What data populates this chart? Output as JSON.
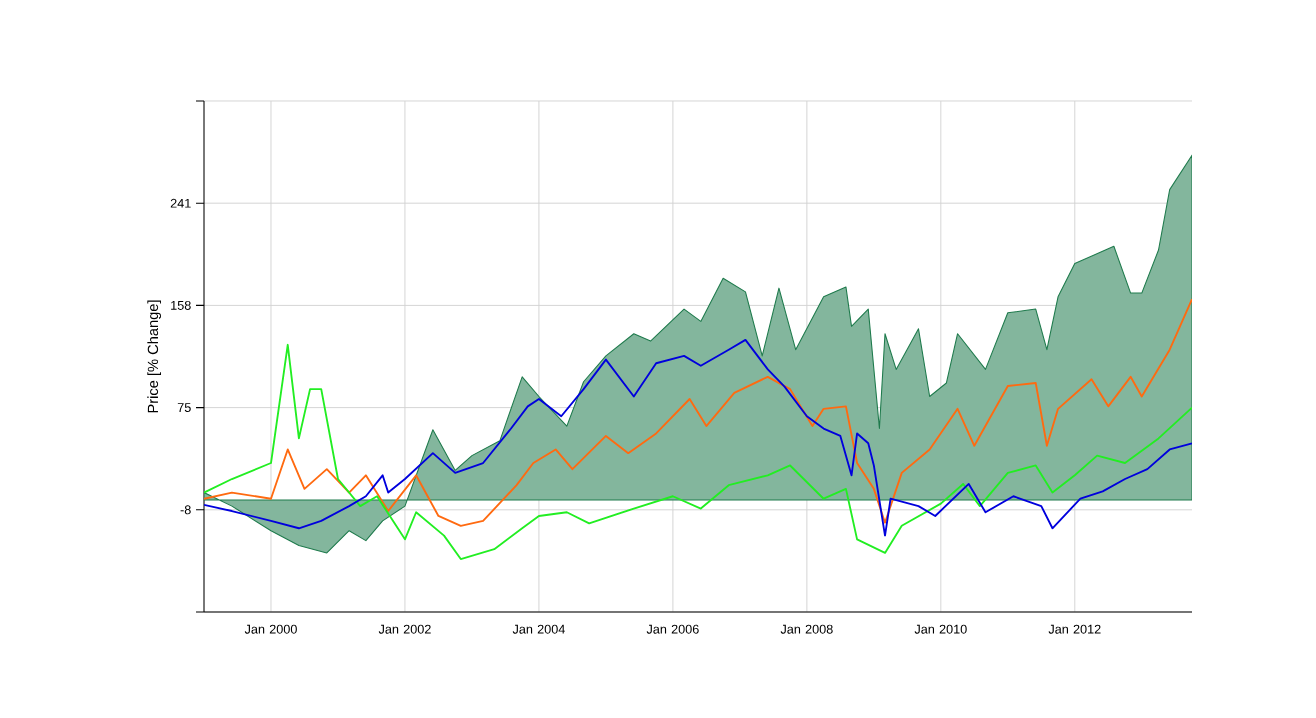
{
  "chart_data": {
    "type": "line",
    "ylabel": "Price [% Change]",
    "xlim": [
      "1999-01",
      "2013-10"
    ],
    "ylim": [
      -91,
      324
    ],
    "xticks": [
      {
        "value": "2000-01",
        "label": "Jan 2000"
      },
      {
        "value": "2002-01",
        "label": "Jan 2002"
      },
      {
        "value": "2004-01",
        "label": "Jan 2004"
      },
      {
        "value": "2006-01",
        "label": "Jan 2006"
      },
      {
        "value": "2008-01",
        "label": "Jan 2008"
      },
      {
        "value": "2010-01",
        "label": "Jan 2010"
      },
      {
        "value": "2012-01",
        "label": "Jan 2012"
      }
    ],
    "yticks": [
      {
        "value": -91,
        "label": null
      },
      -8,
      75,
      158,
      241,
      {
        "value": 324,
        "label": null
      }
    ],
    "grid": true,
    "series": [
      {
        "type": "area",
        "color": "#1e7a4c",
        "x": [
          "1999-01",
          "1999-06",
          "2000-01",
          "2000-06",
          "2000-11",
          "2001-03",
          "2001-06",
          "2001-09",
          "2002-01",
          "2002-06",
          "2002-10",
          "2003-01",
          "2003-06",
          "2003-10",
          "2004-01",
          "2004-06",
          "2004-09",
          "2005-01",
          "2005-06",
          "2005-09",
          "2006-03",
          "2006-06",
          "2006-10",
          "2007-02",
          "2007-05",
          "2007-08",
          "2007-11",
          "2008-04",
          "2008-08",
          "2008-09",
          "2008-12",
          "2009-02",
          "2009-03",
          "2009-05",
          "2009-09",
          "2009-11",
          "2010-02",
          "2010-04",
          "2010-09",
          "2011-01",
          "2011-06",
          "2011-08",
          "2011-10",
          "2012-01",
          "2012-08",
          "2012-11",
          "2013-01",
          "2013-04",
          "2013-06",
          "2013-10"
        ],
        "values": [
          6,
          -5,
          -25,
          -37,
          -43,
          -25,
          -33,
          -17,
          -5,
          57,
          24,
          36,
          48,
          100,
          84,
          60,
          96,
          117,
          135,
          129,
          155,
          145,
          180,
          169,
          117,
          172,
          122,
          165,
          173,
          141,
          155,
          58,
          135,
          106,
          139,
          84,
          95,
          135,
          106,
          152,
          155,
          122,
          165,
          192,
          206,
          168,
          168,
          203,
          252,
          280
        ]
      },
      {
        "color": "#ff6a10",
        "x": [
          "1999-01",
          "1999-06",
          "2000-01",
          "2000-04",
          "2000-07",
          "2000-11",
          "2001-03",
          "2001-06",
          "2001-10",
          "2002-03",
          "2002-07",
          "2002-11",
          "2003-03",
          "2003-09",
          "2003-12",
          "2004-04",
          "2004-07",
          "2005-01",
          "2005-05",
          "2005-10",
          "2006-04",
          "2006-07",
          "2006-12",
          "2007-06",
          "2007-10",
          "2008-02",
          "2008-04",
          "2008-08",
          "2008-10",
          "2009-01",
          "2009-03",
          "2009-06",
          "2009-11",
          "2010-04",
          "2010-07",
          "2011-01",
          "2011-06",
          "2011-08",
          "2011-10",
          "2012-04",
          "2012-07",
          "2012-11",
          "2013-01",
          "2013-06",
          "2013-10"
        ],
        "values": [
          1,
          6,
          1,
          41,
          9,
          25,
          6,
          20,
          -9,
          20,
          -13,
          -21,
          -17,
          12,
          30,
          41,
          25,
          52,
          38,
          54,
          82,
          60,
          87,
          100,
          90,
          60,
          74,
          76,
          30,
          9,
          -18.5,
          22,
          41,
          74,
          44,
          92.5,
          95,
          44,
          74,
          98,
          76,
          100,
          84,
          122,
          163
        ]
      },
      {
        "color": "#22ee22",
        "x": [
          "1999-01",
          "1999-06",
          "2000-01",
          "2000-04",
          "2000-06",
          "2000-08",
          "2000-10",
          "2001-01",
          "2001-05",
          "2001-08",
          "2002-01",
          "2002-03",
          "2002-08",
          "2002-11",
          "2003-05",
          "2003-10",
          "2004-01",
          "2004-06",
          "2004-10",
          "2005-06",
          "2006-01",
          "2006-06",
          "2006-11",
          "2007-06",
          "2007-10",
          "2008-04",
          "2008-08",
          "2008-10",
          "2009-03",
          "2009-06",
          "2010-01",
          "2010-05",
          "2010-08",
          "2011-01",
          "2011-06",
          "2011-09",
          "2012-01",
          "2012-05",
          "2012-10",
          "2013-04",
          "2013-10"
        ],
        "values": [
          6,
          17,
          30,
          126,
          50,
          90,
          90,
          17,
          -5,
          3,
          -32,
          -10,
          -29,
          -48,
          -40,
          -23,
          -13,
          -10,
          -19,
          -7,
          3,
          -7,
          12,
          20,
          28,
          1,
          9,
          -32,
          -43,
          -21,
          -3,
          13,
          -5,
          22,
          28,
          6,
          20,
          36,
          30,
          50,
          75
        ]
      },
      {
        "color": "#0000dd",
        "x": [
          "1999-01",
          "1999-06",
          "2000-01",
          "2000-06",
          "2000-10",
          "2001-03",
          "2001-06",
          "2001-09",
          "2001-10",
          "2002-01",
          "2002-06",
          "2002-10",
          "2003-03",
          "2003-08",
          "2003-11",
          "2004-01",
          "2004-05",
          "2004-09",
          "2005-01",
          "2005-06",
          "2005-10",
          "2006-03",
          "2006-06",
          "2006-11",
          "2007-02",
          "2007-06",
          "2007-09",
          "2008-01",
          "2008-04",
          "2008-07",
          "2008-09",
          "2008-10",
          "2008-12",
          "2009-01",
          "2009-03",
          "2009-04",
          "2009-09",
          "2009-12",
          "2010-06",
          "2010-09",
          "2011-02",
          "2011-07",
          "2011-09",
          "2012-02",
          "2012-06",
          "2012-10",
          "2013-02",
          "2013-06",
          "2013-10"
        ],
        "values": [
          -4,
          -9,
          -17,
          -23,
          -17,
          -5,
          3,
          20,
          6,
          17,
          38,
          22,
          30,
          58,
          76,
          82,
          68,
          90,
          114,
          84,
          111,
          117,
          109,
          122,
          130,
          106,
          92,
          68,
          58,
          52,
          20,
          54,
          46,
          28,
          -29,
          1,
          -5,
          -13,
          13,
          -10,
          3,
          -5,
          -23,
          1,
          7,
          17,
          25,
          41,
          46
        ]
      }
    ]
  }
}
